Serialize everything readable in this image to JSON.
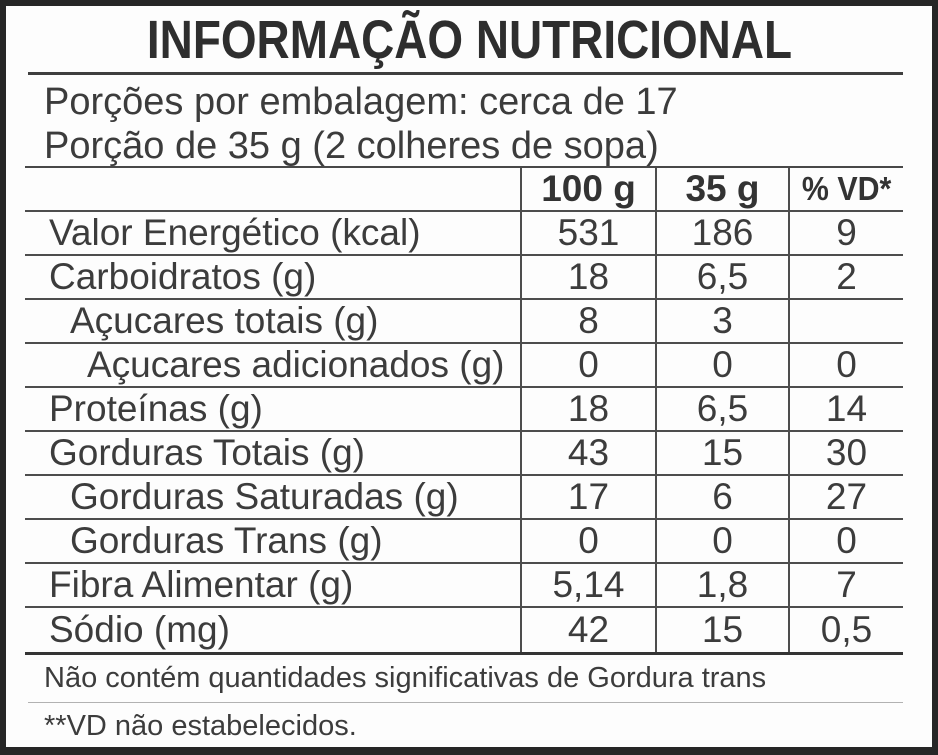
{
  "title": "INFORMAÇÃO NUTRICIONAL",
  "serving_info": {
    "servings_per_package": "Porções por embalagem: cerca de 17",
    "serving_size": "Porção de 35 g (2 colheres de sopa)"
  },
  "table": {
    "columns": {
      "label": "",
      "per_100g": "100 g",
      "per_serving": "35 g",
      "percent_dv": "% VD*"
    },
    "rows": [
      {
        "label": "Valor Energético (kcal)",
        "indent": 0,
        "per_100g": "531",
        "per_serving": "186",
        "percent_dv": "9"
      },
      {
        "label": "Carboidratos (g)",
        "indent": 0,
        "per_100g": "18",
        "per_serving": "6,5",
        "percent_dv": "2"
      },
      {
        "label": "Açucares totais (g)",
        "indent": 1,
        "per_100g": "8",
        "per_serving": "3",
        "percent_dv": ""
      },
      {
        "label": "Açucares adicionados (g)",
        "indent": 2,
        "per_100g": "0",
        "per_serving": "0",
        "percent_dv": "0"
      },
      {
        "label": "Proteínas (g)",
        "indent": 0,
        "per_100g": "18",
        "per_serving": "6,5",
        "percent_dv": "14"
      },
      {
        "label": "Gorduras Totais (g)",
        "indent": 0,
        "per_100g": "43",
        "per_serving": "15",
        "percent_dv": "30"
      },
      {
        "label": "Gorduras Saturadas (g)",
        "indent": 1,
        "per_100g": "17",
        "per_serving": "6",
        "percent_dv": "27"
      },
      {
        "label": "Gorduras Trans (g)",
        "indent": 1,
        "per_100g": "0",
        "per_serving": "0",
        "percent_dv": "0"
      },
      {
        "label": "Fibra Alimentar (g)",
        "indent": 0,
        "per_100g": "5,14",
        "per_serving": "1,8",
        "percent_dv": "7"
      },
      {
        "label": "Sódio (mg)",
        "indent": 0,
        "per_100g": "42",
        "per_serving": "15",
        "percent_dv": "0,5"
      }
    ]
  },
  "footnotes": {
    "trans_fat_note": "Não contém quantidades significativas de Gordura trans",
    "dv_note": "**VD não estabelecidos."
  },
  "colors": {
    "frame_border": "#262626",
    "rule_dark": "#4d4d4d",
    "rule_light": "#b2b2b2",
    "text": "#3c3c3c",
    "background": "#fdfdfd"
  }
}
